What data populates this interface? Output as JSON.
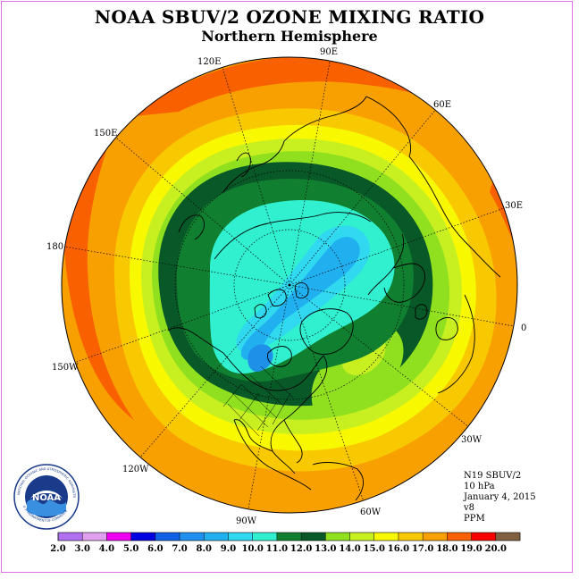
{
  "title": "NOAA SBUV/2 OZONE MIXING RATIO",
  "subtitle": "Northern Hemisphere",
  "longitude_labels": [
    {
      "text": "90E",
      "lon": 90
    },
    {
      "text": "60E",
      "lon": 60
    },
    {
      "text": "30E",
      "lon": 30
    },
    {
      "text": "0",
      "lon": 0
    },
    {
      "text": "30W",
      "lon": -30
    },
    {
      "text": "60W",
      "lon": -60
    },
    {
      "text": "90W",
      "lon": -90
    },
    {
      "text": "120W",
      "lon": -120
    },
    {
      "text": "150W",
      "lon": -150
    },
    {
      "text": "180",
      "lon": 180
    },
    {
      "text": "150E",
      "lon": 150
    },
    {
      "text": "120E",
      "lon": 120
    }
  ],
  "info": {
    "instrument": "N19 SBUV/2",
    "pressure": "10 hPa",
    "date": "January 4, 2015",
    "version": "v8",
    "units": "PPM"
  },
  "logo": {
    "text": "NOAA",
    "ring_text": "NATIONAL OCEANIC AND ATMOSPHERIC ADMINISTRATION",
    "ring_text_bottom": "U.S. DEPARTMENT OF COMMERCE"
  },
  "legend": {
    "ticks": [
      "2.0",
      "3.0",
      "4.0",
      "5.0",
      "6.0",
      "7.0",
      "8.0",
      "9.0",
      "10.0",
      "11.0",
      "12.0",
      "13.0",
      "14.0",
      "15.0",
      "16.0",
      "17.0",
      "18.0",
      "19.0",
      "20.0"
    ],
    "colors": [
      "#b070f0",
      "#e0a0f0",
      "#f000f0",
      "#0000e0",
      "#1060e8",
      "#2090f0",
      "#20b0f0",
      "#30d8f0",
      "#30f0d0",
      "#108030",
      "#085828",
      "#90e020",
      "#c8f020",
      "#f8f800",
      "#f8c800",
      "#f8a000",
      "#f86000",
      "#f80000",
      "#806040"
    ]
  },
  "map_data": {
    "projection": "north polar stereographic",
    "field": "ozone mixing ratio",
    "zones": [
      {
        "level": "17.0-18.0",
        "color": "#f86000"
      },
      {
        "level": "16.0-17.0",
        "color": "#f8a000"
      },
      {
        "level": "15.0-16.0",
        "color": "#f8c800"
      },
      {
        "level": "14.0-15.0",
        "color": "#f8f800"
      },
      {
        "level": "13.0-14.0",
        "color": "#c8f020"
      },
      {
        "level": "12.0-13.0",
        "color": "#90e020"
      },
      {
        "level": "11.0-12.0",
        "color": "#085828"
      },
      {
        "level": "10.0-11.0",
        "color": "#108030"
      },
      {
        "level": "9.0-10.0",
        "color": "#30f0d0"
      },
      {
        "level": "8.0-9.0",
        "color": "#30d8f0"
      },
      {
        "level": "7.0-8.0",
        "color": "#20b0f0"
      }
    ]
  }
}
